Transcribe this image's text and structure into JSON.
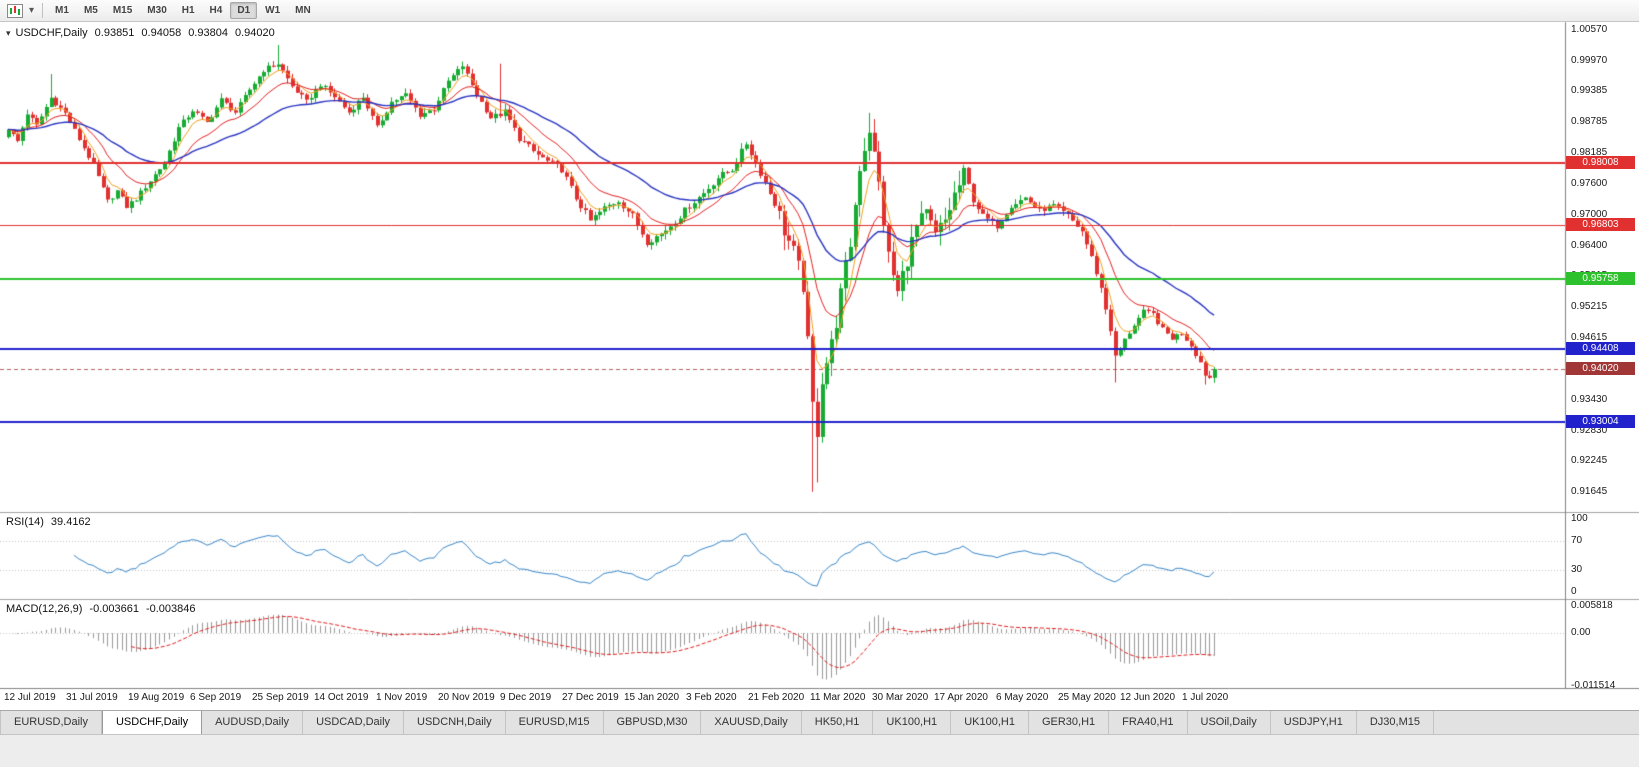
{
  "toolbar": {
    "timeframes": [
      "M1",
      "M5",
      "M15",
      "M30",
      "H1",
      "H4",
      "D1",
      "W1",
      "MN"
    ],
    "active_timeframe": "D1",
    "icons": [
      "chart-window-icon",
      "dropdown-arrow-icon"
    ]
  },
  "chart": {
    "title": "USDCHF,Daily",
    "ohlc": {
      "open": "0.93851",
      "high": "0.94058",
      "low": "0.93804",
      "close": "0.94020"
    },
    "price_axis": [
      "1.00570",
      "0.99970",
      "0.99385",
      "0.98785",
      "0.98185",
      "0.97600",
      "0.97000",
      "0.96400",
      "0.95815",
      "0.95215",
      "0.94615",
      "0.94030",
      "0.93430",
      "0.92830",
      "0.92245",
      "0.91645"
    ],
    "levels": [
      {
        "price": 0.98008,
        "label": "0.98008",
        "color": "#e03030",
        "width": 2
      },
      {
        "price": 0.96803,
        "label": "0.96803",
        "color": "#e03030",
        "width": 1
      },
      {
        "price": 0.95758,
        "label": "0.95758",
        "color": "#2dc22d",
        "width": 2
      },
      {
        "price": 0.94408,
        "label": "0.94408",
        "color": "#2222cc",
        "width": 2
      },
      {
        "price": 0.93004,
        "label": "0.93004",
        "color": "#2222cc",
        "width": 2
      }
    ],
    "current_price": {
      "value": 0.9402,
      "label": "0.94020",
      "line_color": "#b86060",
      "box_color": "#a03636"
    },
    "dates": [
      "12 Jul 2019",
      "31 Jul 2019",
      "19 Aug 2019",
      "6 Sep 2019",
      "25 Sep 2019",
      "14 Oct 2019",
      "1 Nov 2019",
      "20 Nov 2019",
      "9 Dec 2019",
      "27 Dec 2019",
      "15 Jan 2020",
      "3 Feb 2020",
      "21 Feb 2020",
      "11 Mar 2020",
      "30 Mar 2020",
      "17 Apr 2020",
      "6 May 2020",
      "25 May 2020",
      "12 Jun 2020",
      "1 Jul 2020"
    ]
  },
  "rsi": {
    "label": "RSI(14)",
    "value": "39.4162",
    "axis": [
      "100",
      "70",
      "30",
      "0"
    ],
    "color": "#3a87c8"
  },
  "macd": {
    "label": "MACD(12,26,9)",
    "value_main": "-0.003661",
    "value_signal": "-0.003846",
    "axis": [
      "0.005818",
      "0.00",
      "-0.011514"
    ]
  },
  "tabs": [
    {
      "label": "EURUSD,Daily",
      "active": false
    },
    {
      "label": "USDCHF,Daily",
      "active": true
    },
    {
      "label": "AUDUSD,Daily",
      "active": false
    },
    {
      "label": "USDCAD,Daily",
      "active": false
    },
    {
      "label": "USDCNH,Daily",
      "active": false
    },
    {
      "label": "EURUSD,M15",
      "active": false
    },
    {
      "label": "GBPUSD,M30",
      "active": false
    },
    {
      "label": "XAUUSD,Daily",
      "active": false
    },
    {
      "label": "HK50,H1",
      "active": false
    },
    {
      "label": "UK100,H1",
      "active": false
    },
    {
      "label": "UK100,H1",
      "active": false
    },
    {
      "label": "GER30,H1",
      "active": false
    },
    {
      "label": "FRA40,H1",
      "active": false
    },
    {
      "label": "USOil,Daily",
      "active": false
    },
    {
      "label": "USDJPY,H1",
      "active": false
    },
    {
      "label": "DJ30,M15",
      "active": false
    }
  ],
  "chart_data": {
    "type": "candlestick",
    "symbol": "USDCHF",
    "timeframe": "Daily",
    "current_ohlc": {
      "open": 0.93851,
      "high": 0.94058,
      "low": 0.93804,
      "close": 0.9402
    },
    "visible_price_range": {
      "max": 1.0057,
      "min": 0.91645
    },
    "num_candles": 256,
    "anchors": [
      [
        0,
        0.9865
      ],
      [
        2,
        0.9842
      ],
      [
        4,
        0.9896
      ],
      [
        6,
        0.9872
      ],
      [
        9,
        0.9926
      ],
      [
        12,
        0.9896
      ],
      [
        15,
        0.9846
      ],
      [
        18,
        0.9796
      ],
      [
        21,
        0.9726
      ],
      [
        23,
        0.9746
      ],
      [
        25,
        0.9716
      ],
      [
        27,
        0.9731
      ],
      [
        30,
        0.9766
      ],
      [
        33,
        0.9801
      ],
      [
        36,
        0.9868
      ],
      [
        39,
        0.9902
      ],
      [
        42,
        0.9878
      ],
      [
        45,
        0.9922
      ],
      [
        48,
        0.9898
      ],
      [
        51,
        0.9942
      ],
      [
        54,
        0.998
      ],
      [
        57,
        0.9992
      ],
      [
        60,
        0.9948
      ],
      [
        63,
        0.9918
      ],
      [
        66,
        0.9952
      ],
      [
        69,
        0.9928
      ],
      [
        72,
        0.9898
      ],
      [
        75,
        0.9928
      ],
      [
        78,
        0.9868
      ],
      [
        81,
        0.9918
      ],
      [
        84,
        0.9932
      ],
      [
        87,
        0.9893
      ],
      [
        90,
        0.9905
      ],
      [
        93,
        0.9958
      ],
      [
        96,
        0.9988
      ],
      [
        99,
        0.9932
      ],
      [
        102,
        0.9888
      ],
      [
        105,
        0.9898
      ],
      [
        108,
        0.9848
      ],
      [
        111,
        0.9822
      ],
      [
        114,
        0.9803
      ],
      [
        117,
        0.9788
      ],
      [
        120,
        0.9732
      ],
      [
        123,
        0.9688
      ],
      [
        126,
        0.9713
      ],
      [
        129,
        0.9728
      ],
      [
        132,
        0.9698
      ],
      [
        135,
        0.9648
      ],
      [
        138,
        0.9663
      ],
      [
        141,
        0.9688
      ],
      [
        144,
        0.9718
      ],
      [
        147,
        0.9742
      ],
      [
        150,
        0.9772
      ],
      [
        153,
        0.9788
      ],
      [
        156,
        0.9838
      ],
      [
        158,
        0.98
      ],
      [
        160,
        0.9762
      ],
      [
        162,
        0.9722
      ],
      [
        164,
        0.9672
      ],
      [
        166,
        0.9625
      ],
      [
        168,
        0.9565
      ],
      [
        170,
        0.933
      ],
      [
        171,
        0.9285
      ],
      [
        172,
        0.9385
      ],
      [
        174,
        0.9448
      ],
      [
        176,
        0.9545
      ],
      [
        178,
        0.9645
      ],
      [
        180,
        0.9795
      ],
      [
        182,
        0.9868
      ],
      [
        184,
        0.9758
      ],
      [
        186,
        0.9618
      ],
      [
        188,
        0.9548
      ],
      [
        190,
        0.9618
      ],
      [
        192,
        0.9675
      ],
      [
        194,
        0.9698
      ],
      [
        196,
        0.9658
      ],
      [
        198,
        0.9688
      ],
      [
        200,
        0.9738
      ],
      [
        202,
        0.9775
      ],
      [
        204,
        0.9728
      ],
      [
        206,
        0.9698
      ],
      [
        209,
        0.9678
      ],
      [
        212,
        0.9718
      ],
      [
        215,
        0.9733
      ],
      [
        218,
        0.9708
      ],
      [
        221,
        0.9718
      ],
      [
        224,
        0.9698
      ],
      [
        227,
        0.9668
      ],
      [
        229,
        0.9618
      ],
      [
        231,
        0.9558
      ],
      [
        233,
        0.9478
      ],
      [
        234,
        0.9425
      ],
      [
        236,
        0.9458
      ],
      [
        238,
        0.9488
      ],
      [
        240,
        0.9512
      ],
      [
        242,
        0.9508
      ],
      [
        244,
        0.9478
      ],
      [
        246,
        0.9462
      ],
      [
        248,
        0.9472
      ],
      [
        250,
        0.9448
      ],
      [
        252,
        0.9415
      ],
      [
        253,
        0.9392
      ],
      [
        254,
        0.93851
      ],
      [
        255,
        0.9402
      ]
    ],
    "extremes": [
      {
        "i": 9,
        "high": 0.9972
      },
      {
        "i": 57,
        "high": 1.0028
      },
      {
        "i": 96,
        "high": 0.9996
      },
      {
        "i": 104,
        "high": 0.9992
      },
      {
        "i": 170,
        "low": 0.9165
      },
      {
        "i": 171,
        "low": 0.9183
      },
      {
        "i": 182,
        "high": 0.9897
      },
      {
        "i": 234,
        "low": 0.9376
      },
      {
        "i": 253,
        "low": 0.9372
      },
      {
        "i": 255,
        "high": 0.94058,
        "low": 0.93804
      }
    ],
    "indicators": {
      "moving_averages": [
        {
          "period": 5,
          "color_key": "ma_fast"
        },
        {
          "period": 13,
          "color_key": "ma_mid"
        },
        {
          "period": 34,
          "color_key": "ma_slow"
        }
      ],
      "rsi": {
        "period": 14,
        "current": 39.4162
      },
      "macd": {
        "fast": 12,
        "slow": 26,
        "signal": 9,
        "current": -0.003661,
        "current_signal": -0.003846
      }
    },
    "colors": {
      "up": "#17ab33",
      "down": "#e03030",
      "ma_fast": "#f0a020",
      "ma_mid": "#e32222",
      "ma_slow": "#2a35c0",
      "macd_hist": "#9a9a9a",
      "macd_signal": "#dd2222"
    }
  }
}
